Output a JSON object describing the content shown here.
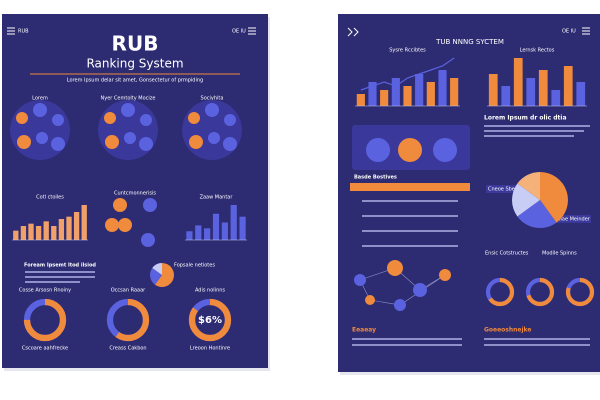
{
  "left": {
    "menu_label": "RUB",
    "corner": "OE IU",
    "title": "RUB",
    "subtitle": "Ranking System",
    "tagline": "Lorem Ipsum delar sit amet, Gonsectetur of prmpiding",
    "clusters": [
      "Lorem",
      "Nyer Cemtolty Mocize",
      "Sociyhita"
    ],
    "bar_chart": {
      "type": "bar",
      "title": "Cotl ctoiles",
      "values": [
        4,
        6,
        7,
        6,
        8,
        6,
        9,
        10,
        12,
        15
      ],
      "color": "#f0a068"
    },
    "hub_title": "Cuntcmonnerisis",
    "bar_chart_2": {
      "type": "bar",
      "title": "Zaaw Mantar",
      "values": [
        3,
        5,
        4,
        9,
        6,
        12,
        8
      ],
      "color": "#5a62e0"
    },
    "feature_title": "Foream Ipsemt ltod ilsiod",
    "pie": {
      "type": "pie",
      "title": "Fopsale netiotes",
      "values": [
        60,
        25,
        15
      ],
      "colors": [
        "#f08a3c",
        "#5a62e0",
        "#c8cdf5"
      ]
    },
    "donuts": {
      "type": "donut",
      "labels": [
        "Cosse Arsosn Rnoiny",
        "Occsan Raaar",
        "Adis nolinns"
      ],
      "values": [
        75,
        60,
        85
      ],
      "center_label": "$6%",
      "captions": [
        "Cscoare aahfrecke",
        "Creass Cakbon",
        "Lreoon Hontinre"
      ]
    }
  },
  "right": {
    "corner": "OE IU",
    "title": "TUB NNNG SYCTEM",
    "chart_a": {
      "type": "bar",
      "title": "Sysre Rccibtes",
      "values": [
        3,
        6,
        4,
        7,
        5,
        8,
        6,
        9,
        7
      ],
      "line": [
        4,
        5,
        6,
        5,
        7,
        8,
        9,
        10,
        12
      ],
      "colors": [
        "#f08a3c",
        "#5a62e0"
      ]
    },
    "chart_b": {
      "type": "bar",
      "title": "Lernsk Rectos",
      "values": [
        8,
        5,
        12,
        7,
        9,
        4,
        10,
        6
      ],
      "colors": [
        "#f08a3c",
        "#5a62e0"
      ]
    },
    "heading": "Lorem Ipsum dr olic dtia",
    "section": "Basde Bostives",
    "pie": {
      "type": "pie",
      "values": [
        40,
        25,
        20,
        15
      ],
      "colors": [
        "#f08a3c",
        "#5a62e0",
        "#c8cdf5",
        "#f4b27a"
      ],
      "labels": [
        "Cneoe Sbenstores",
        "Ciae Meinder"
      ]
    },
    "bottom_titles": [
      "Ensic Cotstructes",
      "Modile Spinns"
    ],
    "donuts": {
      "type": "donut",
      "values": [
        65,
        70,
        80
      ]
    },
    "footer": [
      "Eeaeay",
      "Goeeoshnejke"
    ]
  }
}
